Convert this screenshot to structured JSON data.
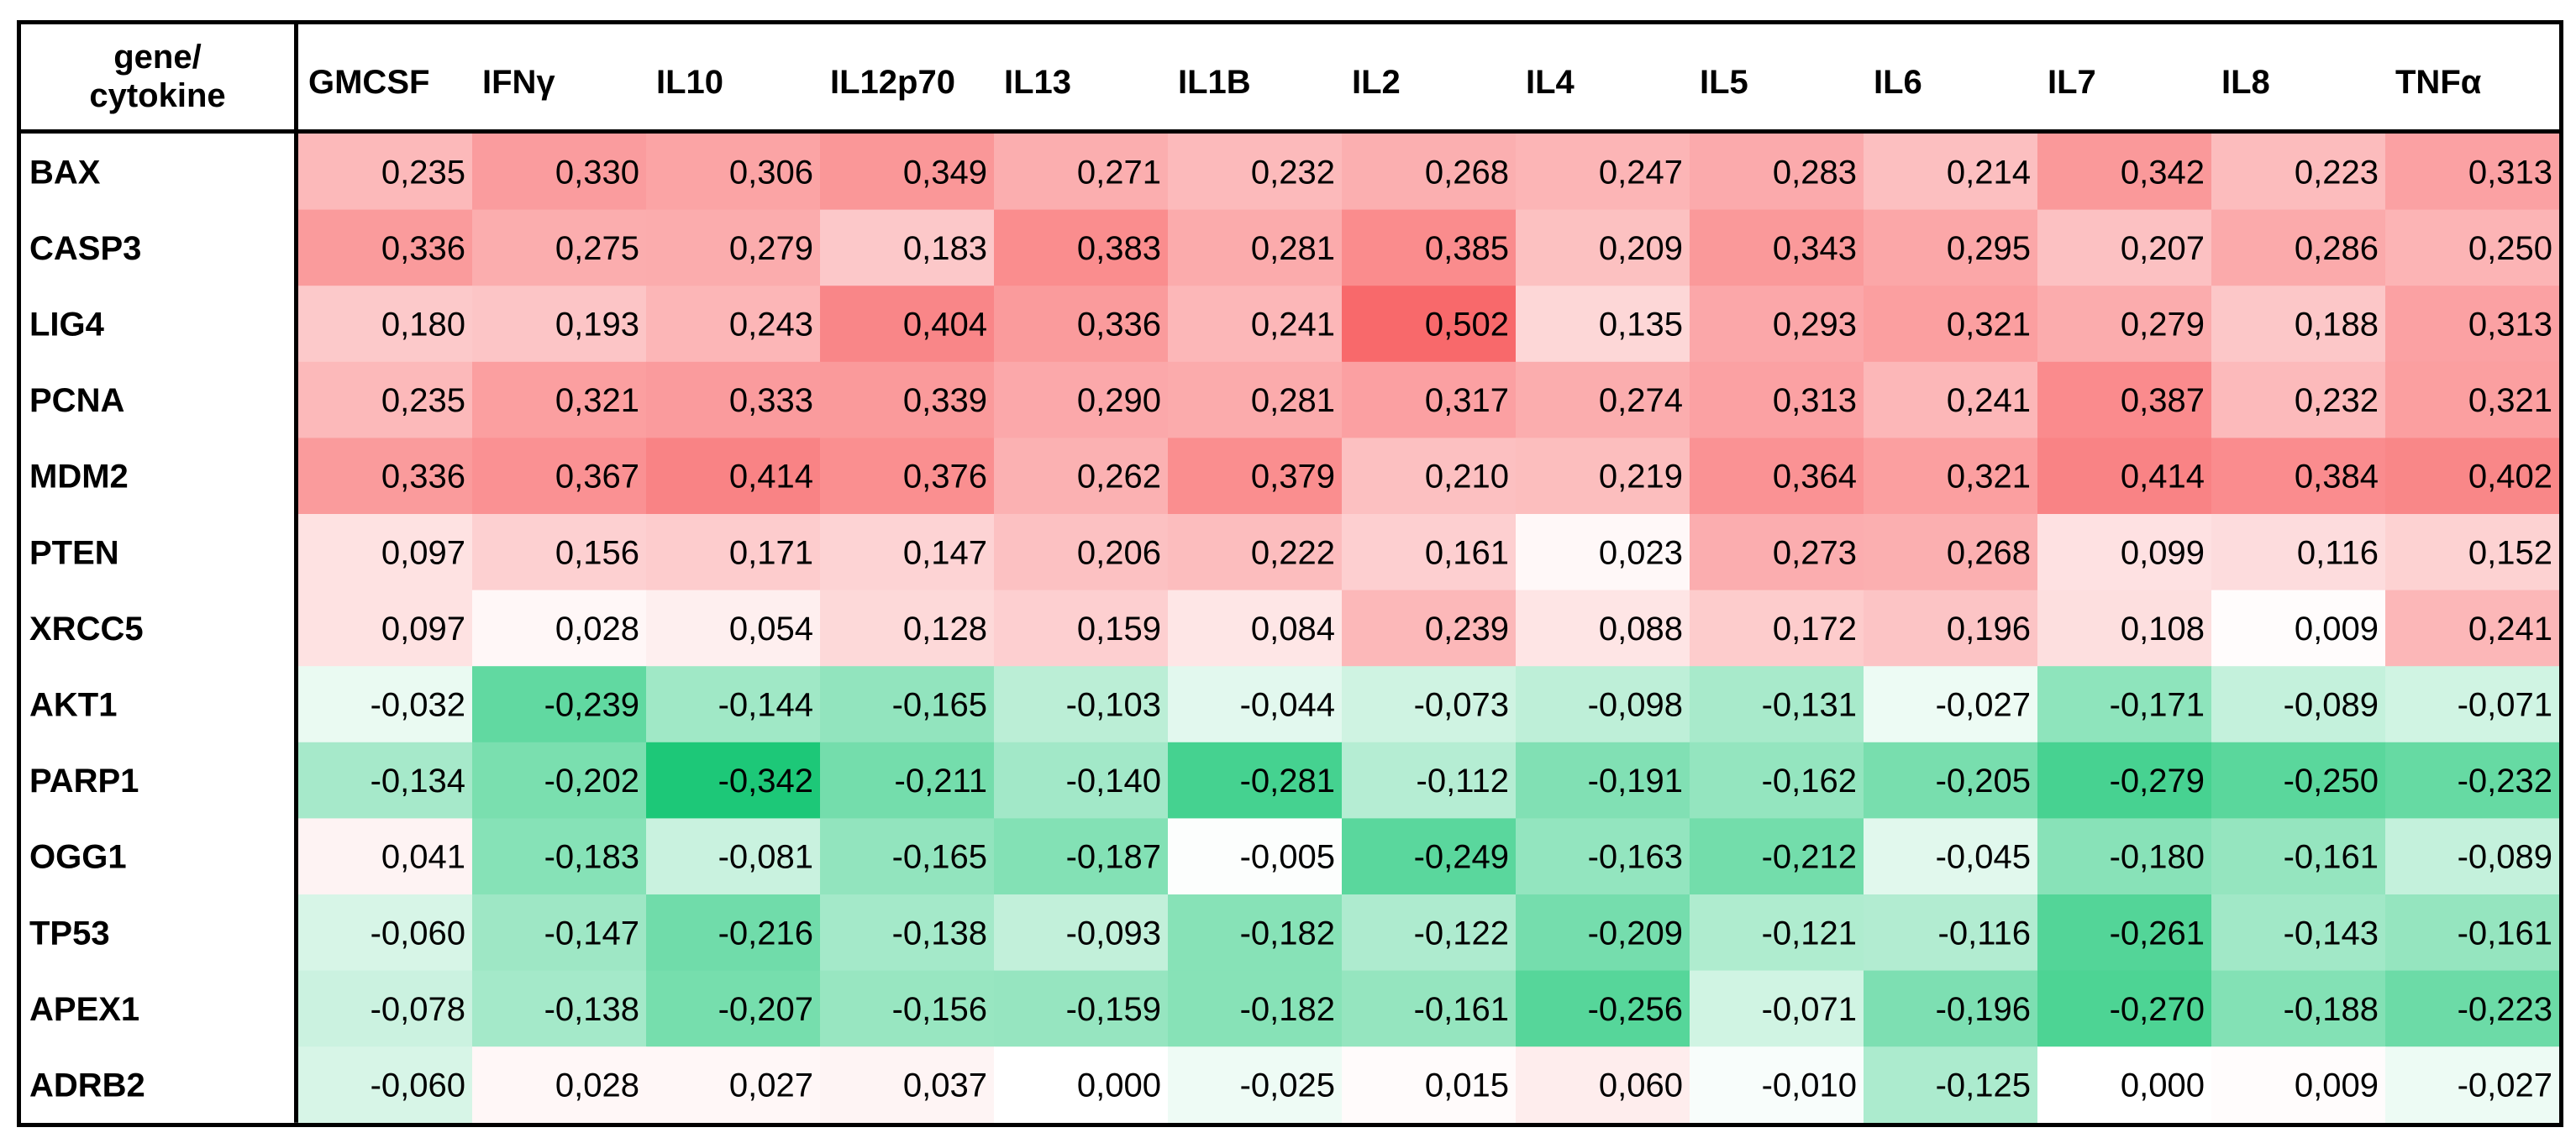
{
  "chart_data": {
    "type": "heatmap",
    "corner_label": [
      "gene/",
      "cytokine"
    ],
    "columns": [
      "GMCSF",
      "IFNγ",
      "IL10",
      "IL12p70",
      "IL13",
      "IL1B",
      "IL2",
      "IL4",
      "IL5",
      "IL6",
      "IL7",
      "IL8",
      "TNFα"
    ],
    "rows": [
      "BAX",
      "CASP3",
      "LIG4",
      "PCNA",
      "MDM2",
      "PTEN",
      "XRCC5",
      "AKT1",
      "PARP1",
      "OGG1",
      "TP53",
      "APEX1",
      "ADRB2"
    ],
    "values": [
      [
        0.235,
        0.33,
        0.306,
        0.349,
        0.271,
        0.232,
        0.268,
        0.247,
        0.283,
        0.214,
        0.342,
        0.223,
        0.313
      ],
      [
        0.336,
        0.275,
        0.279,
        0.183,
        0.383,
        0.281,
        0.385,
        0.209,
        0.343,
        0.295,
        0.207,
        0.286,
        0.25
      ],
      [
        0.18,
        0.193,
        0.243,
        0.404,
        0.336,
        0.241,
        0.502,
        0.135,
        0.293,
        0.321,
        0.279,
        0.188,
        0.313
      ],
      [
        0.235,
        0.321,
        0.333,
        0.339,
        0.29,
        0.281,
        0.317,
        0.274,
        0.313,
        0.241,
        0.387,
        0.232,
        0.321
      ],
      [
        0.336,
        0.367,
        0.414,
        0.376,
        0.262,
        0.379,
        0.21,
        0.219,
        0.364,
        0.321,
        0.414,
        0.384,
        0.402
      ],
      [
        0.097,
        0.156,
        0.171,
        0.147,
        0.206,
        0.222,
        0.161,
        0.023,
        0.273,
        0.268,
        0.099,
        0.116,
        0.152
      ],
      [
        0.097,
        0.028,
        0.054,
        0.128,
        0.159,
        0.084,
        0.239,
        0.088,
        0.172,
        0.196,
        0.108,
        0.009,
        0.241
      ],
      [
        -0.032,
        -0.239,
        -0.144,
        -0.165,
        -0.103,
        -0.044,
        -0.073,
        -0.098,
        -0.131,
        -0.027,
        -0.171,
        -0.089,
        -0.071
      ],
      [
        -0.134,
        -0.202,
        -0.342,
        -0.211,
        -0.14,
        -0.281,
        -0.112,
        -0.191,
        -0.162,
        -0.205,
        -0.279,
        -0.25,
        -0.232
      ],
      [
        0.041,
        -0.183,
        -0.081,
        -0.165,
        -0.187,
        -0.005,
        -0.249,
        -0.163,
        -0.212,
        -0.045,
        -0.18,
        -0.161,
        -0.089
      ],
      [
        -0.06,
        -0.147,
        -0.216,
        -0.138,
        -0.093,
        -0.182,
        -0.122,
        -0.209,
        -0.121,
        -0.116,
        -0.261,
        -0.143,
        -0.161
      ],
      [
        -0.078,
        -0.138,
        -0.207,
        -0.156,
        -0.159,
        -0.182,
        -0.161,
        -0.256,
        -0.071,
        -0.196,
        -0.27,
        -0.188,
        -0.223
      ],
      [
        -0.06,
        0.028,
        0.027,
        0.037,
        0.0,
        -0.025,
        0.015,
        0.06,
        -0.01,
        -0.125,
        0.0,
        0.009,
        -0.027
      ]
    ],
    "value_format": "3 decimals, comma decimal separator",
    "colors": {
      "positive": "#f8696b",
      "negative": "#1dc878",
      "neutral": "#ffffff"
    },
    "grid": false,
    "legend": "none"
  }
}
